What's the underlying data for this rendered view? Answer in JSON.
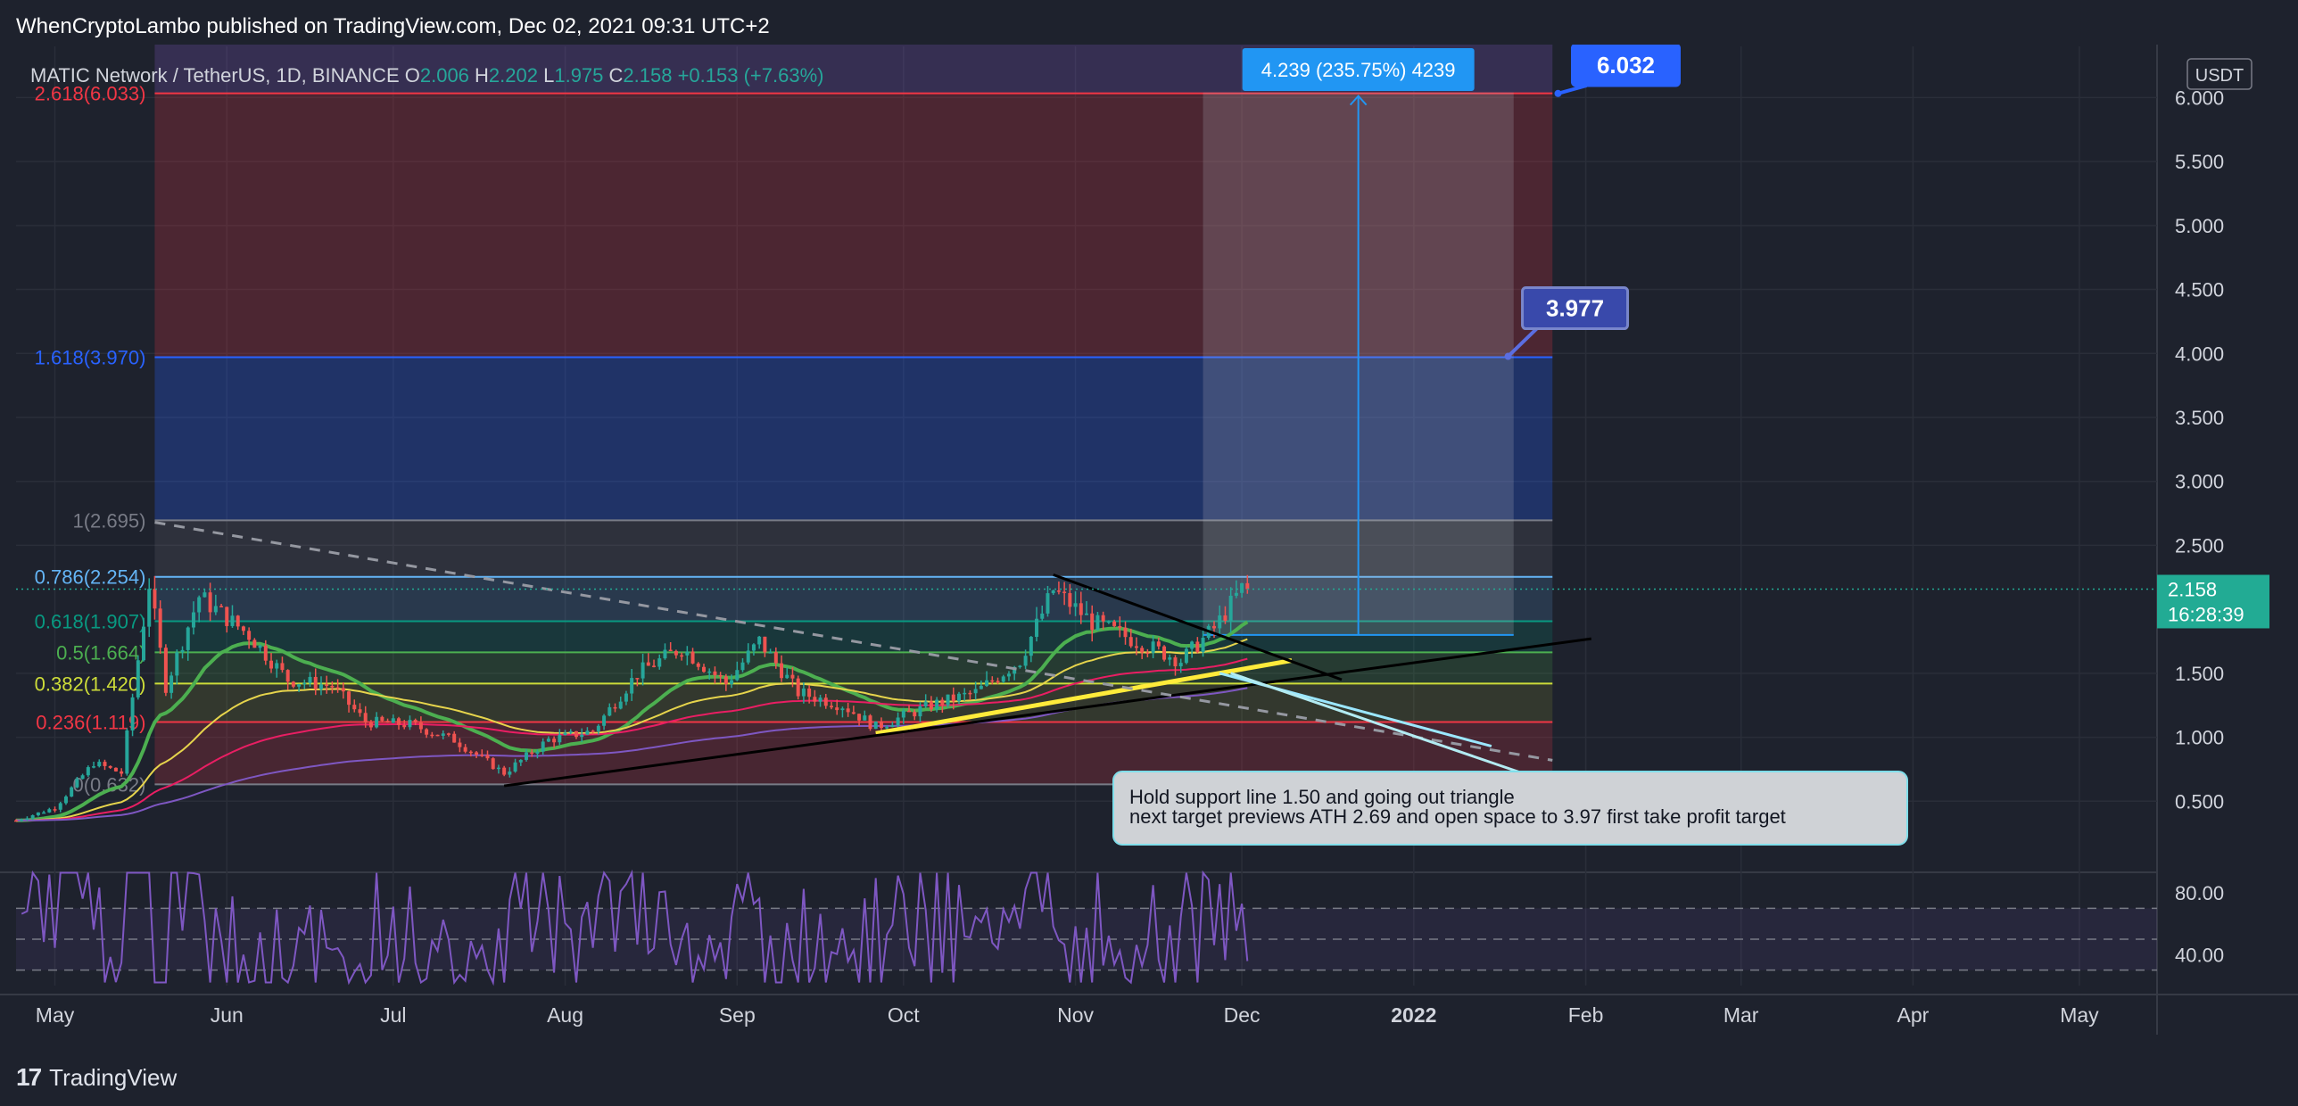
{
  "header": {
    "published": "WhenCryptoLambo published on TradingView.com, Dec 02, 2021 09:31 UTC+2"
  },
  "footer": {
    "brand": "TradingView"
  },
  "colors": {
    "background": "#1e222d",
    "up": "#26a69a",
    "down": "#ef5350",
    "accent": "#2962ff",
    "ema_green": "#4caf50",
    "ema_yellow": "#e6d44c",
    "ema_red": "#e91e63",
    "ema_purple": "#7e57c2",
    "rsi": "#7e57c2",
    "yellow_trend": "#ffeb3b",
    "price_label": "#22ab94"
  },
  "chart_data": {
    "type": "candlestick",
    "symbol_line": {
      "symbol": "MATIC Network / TetherUS, 1D, BINANCE",
      "o_label": "O",
      "o_value": "2.006",
      "h_label": "H",
      "h_value": "2.202",
      "l_label": "L",
      "l_value": "1.975",
      "c_label": "C",
      "c_value": "2.158",
      "change": "+0.153 (+7.63%)"
    },
    "currency_button": "USDT",
    "y_axis": {
      "min": 0.0,
      "max": 6.4,
      "ticks": [
        "6.000",
        "5.500",
        "5.000",
        "4.500",
        "4.000",
        "3.500",
        "3.000",
        "2.500",
        "1.500",
        "1.000",
        "0.500"
      ],
      "tick_values": [
        6.0,
        5.5,
        5.0,
        4.5,
        4.0,
        3.5,
        3.0,
        2.5,
        1.5,
        1.0,
        0.5
      ]
    },
    "x_axis": {
      "start_date": "2021-04-24",
      "end_date": "2022-05-15",
      "ticks": [
        {
          "label": "May",
          "date": "2021-05-01"
        },
        {
          "label": "Jun",
          "date": "2021-06-01"
        },
        {
          "label": "Jul",
          "date": "2021-07-01"
        },
        {
          "label": "Aug",
          "date": "2021-08-01"
        },
        {
          "label": "Sep",
          "date": "2021-09-01"
        },
        {
          "label": "Oct",
          "date": "2021-10-01"
        },
        {
          "label": "Nov",
          "date": "2021-11-01"
        },
        {
          "label": "Dec",
          "date": "2021-12-01"
        },
        {
          "label": "2022",
          "date": "2022-01-01"
        },
        {
          "label": "Feb",
          "date": "2022-02-01"
        },
        {
          "label": "Mar",
          "date": "2022-03-01"
        },
        {
          "label": "Apr",
          "date": "2022-04-01"
        },
        {
          "label": "May",
          "date": "2022-05-01"
        }
      ]
    },
    "last_price": {
      "price": "2.158",
      "countdown": "16:28:39",
      "value": 2.158
    },
    "fib_levels": [
      {
        "label": "2.618(6.033)",
        "value": 6.033,
        "color": "#f23645"
      },
      {
        "label": "1.618(3.970)",
        "value": 3.97,
        "color": "#2962ff"
      },
      {
        "label": "1(2.695)",
        "value": 2.695,
        "color": "#787b86"
      },
      {
        "label": "0.786(2.254)",
        "value": 2.254,
        "color": "#64b5f6"
      },
      {
        "label": "0.618(1.907)",
        "value": 1.907,
        "color": "#089981"
      },
      {
        "label": "0.5(1.664)",
        "value": 1.664,
        "color": "#4caf50"
      },
      {
        "label": "0.382(1.420)",
        "value": 1.42,
        "color": "#cddc39"
      },
      {
        "label": "0.236(1.119)",
        "value": 1.119,
        "color": "#f23645"
      },
      {
        "label": "0(0.632)",
        "value": 0.632,
        "color": "#787b86"
      }
    ],
    "fib_range": {
      "start_date": "2021-05-19",
      "end_date": "2022-01-26"
    },
    "target_box": {
      "start_date": "2021-11-24",
      "end_date": "2022-01-19",
      "entry": 1.8,
      "target": 6.04,
      "label": "4.239 (235.75%) 4239"
    },
    "callouts": [
      {
        "text": "6.032",
        "value": 6.032,
        "date": "2022-01-27"
      },
      {
        "text": "3.977",
        "value": 3.977,
        "date": "2022-01-18"
      }
    ],
    "note": {
      "line1": "Hold support line 1.50 and going out triangle",
      "line2": "next target previews ATH 2.69 and open space to 3.97 first take profit target",
      "anchor_date": "2021-11-29",
      "anchor_value": 1.5
    },
    "trendlines": [
      {
        "name": "yellow-support",
        "color": "#ffeb3b",
        "from": {
          "date": "2021-09-26",
          "value": 1.03
        },
        "to": {
          "date": "2021-12-10",
          "value": 1.6
        }
      },
      {
        "name": "black-support-extended",
        "color": "#000000",
        "from": {
          "date": "2021-07-21",
          "value": 0.62
        },
        "to": {
          "date": "2022-02-02",
          "value": 1.77
        }
      },
      {
        "name": "black-resistance",
        "color": "#000000",
        "from": {
          "date": "2021-10-28",
          "value": 2.27
        },
        "to": {
          "date": "2021-12-19",
          "value": 1.45
        }
      },
      {
        "name": "gray-dashed-decline",
        "color": "#9598a1",
        "dashed": true,
        "from": {
          "date": "2021-05-19",
          "value": 2.68
        },
        "to": {
          "date": "2022-01-26",
          "value": 0.82
        }
      },
      {
        "name": "cyan-arrow",
        "color": "#9be7ff",
        "from": {
          "date": "2021-11-27",
          "value": 1.5
        },
        "to": {
          "date": "2022-01-15",
          "value": 0.93
        }
      }
    ],
    "rsi": {
      "ticks": [
        "80.00",
        "40.00"
      ],
      "tick_values": [
        80,
        40
      ],
      "min": 20,
      "max": 95,
      "upper_band": 70,
      "middle": 50,
      "lower_band": 30
    }
  }
}
